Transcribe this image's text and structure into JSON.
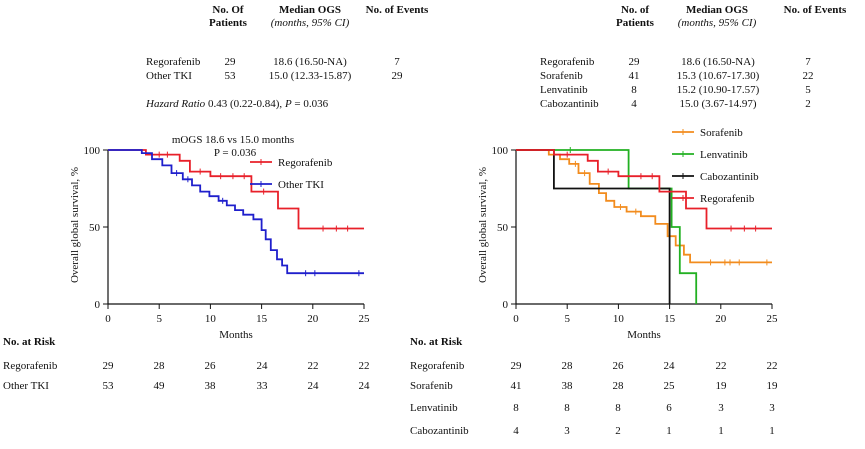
{
  "left_table": {
    "headers": {
      "patients_line1": "No. Of",
      "patients_line2": "Patients",
      "median": "Median OGS",
      "median_sub": "(months, 95% CI)",
      "events": "No. of Events"
    },
    "rows": [
      {
        "name": "Regorafenib",
        "n": "29",
        "median": "18.6 (16.50-NA)",
        "events": "7"
      },
      {
        "name": "Other TKI",
        "n": "53",
        "median": "15.0 (12.33-15.87)",
        "events": "29"
      }
    ],
    "hazard_label": "Hazard Ratio",
    "hazard_value": "0.43 (0.22-0.84),",
    "p_label": "P",
    "p_value": "= 0.036"
  },
  "right_table": {
    "headers": {
      "patients_line1": "No. of",
      "patients_line2": "Patients",
      "median": "Median OGS",
      "median_sub": "(months, 95% CI)",
      "events": "No. of Events"
    },
    "rows": [
      {
        "name": "Regorafenib",
        "n": "29",
        "median": "18.6 (16.50-NA)",
        "events": "7"
      },
      {
        "name": "Sorafenib",
        "n": "41",
        "median": "15.3 (10.67-17.30)",
        "events": "22"
      },
      {
        "name": "Lenvatinib",
        "n": "8",
        "median": "15.2 (10.90-17.57)",
        "events": "5"
      },
      {
        "name": "Cabozantinib",
        "n": "4",
        "median": "15.0 (3.67-14.97)",
        "events": "2"
      }
    ]
  },
  "left_risk": {
    "title": "No. at Risk",
    "rows": [
      {
        "name": "Regorafenib",
        "values": [
          "29",
          "28",
          "26",
          "24",
          "22",
          "22"
        ]
      },
      {
        "name": "Other TKI",
        "values": [
          "53",
          "49",
          "38",
          "33",
          "24",
          "24"
        ]
      }
    ]
  },
  "right_risk": {
    "title": "No. at Risk",
    "rows": [
      {
        "name": "Regorafenib",
        "values": [
          "29",
          "28",
          "26",
          "24",
          "22",
          "22"
        ]
      },
      {
        "name": "Sorafenib",
        "values": [
          "41",
          "38",
          "28",
          "25",
          "19",
          "19"
        ]
      },
      {
        "name": "Lenvatinib",
        "values": [
          "8",
          "8",
          "8",
          "6",
          "3",
          "3"
        ]
      },
      {
        "name": "Cabozantinib",
        "values": [
          "4",
          "3",
          "2",
          "1",
          "1",
          "1"
        ]
      }
    ]
  },
  "chart_data": [
    {
      "type": "line",
      "title": "",
      "annotation_line1": "mOGS 18.6 vs 15.0 months",
      "annotation_line2": "P = 0.036",
      "xlabel": "Months",
      "ylabel": "Overall global survival, %",
      "xlim": [
        0,
        25
      ],
      "ylim": [
        0,
        100
      ],
      "xticks": [
        "0",
        "5",
        "10",
        "15",
        "20",
        "25"
      ],
      "yticks": [
        "0",
        "50",
        "100"
      ],
      "legend": "top-right",
      "series": [
        {
          "name": "Regorafenib",
          "color": "#e8202a",
          "steps": [
            [
              0,
              100
            ],
            [
              3.7,
              100
            ],
            [
              3.7,
              97
            ],
            [
              7,
              97
            ],
            [
              7,
              93
            ],
            [
              8,
              93
            ],
            [
              8,
              86
            ],
            [
              10,
              86
            ],
            [
              10,
              83
            ],
            [
              14,
              83
            ],
            [
              14,
              73
            ],
            [
              16.6,
              73
            ],
            [
              16.6,
              62
            ],
            [
              18.6,
              62
            ],
            [
              18.6,
              49
            ],
            [
              25,
              49
            ]
          ],
          "censors": [
            5,
            5.8,
            9,
            11,
            12.2,
            13.3,
            15.2,
            21,
            22.3,
            23.4
          ]
        },
        {
          "name": "Other TKI",
          "color": "#1f1fcc",
          "steps": [
            [
              0,
              100
            ],
            [
              3.3,
              100
            ],
            [
              3.3,
              98
            ],
            [
              4.3,
              98
            ],
            [
              4.3,
              94
            ],
            [
              5.3,
              94
            ],
            [
              5.3,
              90
            ],
            [
              6.2,
              90
            ],
            [
              6.2,
              85
            ],
            [
              7.3,
              85
            ],
            [
              7.3,
              81
            ],
            [
              8.2,
              81
            ],
            [
              8.2,
              77
            ],
            [
              9,
              77
            ],
            [
              9,
              73
            ],
            [
              9.9,
              73
            ],
            [
              9.9,
              70
            ],
            [
              10.8,
              70
            ],
            [
              10.8,
              67
            ],
            [
              11.6,
              67
            ],
            [
              11.6,
              64
            ],
            [
              12.4,
              64
            ],
            [
              12.4,
              61
            ],
            [
              13.2,
              61
            ],
            [
              13.2,
              58
            ],
            [
              14.2,
              58
            ],
            [
              14.2,
              55
            ],
            [
              15,
              55
            ],
            [
              15,
              48
            ],
            [
              15.4,
              48
            ],
            [
              15.4,
              42
            ],
            [
              15.9,
              42
            ],
            [
              15.9,
              35
            ],
            [
              16.5,
              35
            ],
            [
              16.5,
              29
            ],
            [
              17,
              29
            ],
            [
              17,
              25
            ],
            [
              17.5,
              25
            ],
            [
              17.5,
              20
            ],
            [
              25,
              20
            ]
          ],
          "censors": [
            6.7,
            7.8,
            11.2,
            19.3,
            20.2,
            24.5
          ]
        }
      ]
    },
    {
      "type": "line",
      "title": "",
      "xlabel": "Months",
      "ylabel": "Overall global survival, %",
      "xlim": [
        0,
        25
      ],
      "ylim": [
        0,
        100
      ],
      "xticks": [
        "0",
        "5",
        "10",
        "15",
        "20",
        "25"
      ],
      "yticks": [
        "0",
        "50",
        "100"
      ],
      "legend": "top-right",
      "series": [
        {
          "name": "Sorafenib",
          "color": "#f28c1e",
          "steps": [
            [
              0,
              100
            ],
            [
              3.2,
              100
            ],
            [
              3.2,
              97
            ],
            [
              4.3,
              97
            ],
            [
              4.3,
              94
            ],
            [
              5.2,
              94
            ],
            [
              5.2,
              91
            ],
            [
              6.1,
              91
            ],
            [
              6.1,
              85
            ],
            [
              7.2,
              85
            ],
            [
              7.2,
              78
            ],
            [
              8.1,
              78
            ],
            [
              8.1,
              72
            ],
            [
              8.8,
              72
            ],
            [
              8.8,
              67
            ],
            [
              9.6,
              67
            ],
            [
              9.6,
              63
            ],
            [
              10.8,
              63
            ],
            [
              10.8,
              60
            ],
            [
              12.2,
              60
            ],
            [
              12.2,
              57
            ],
            [
              13.6,
              57
            ],
            [
              13.6,
              52
            ],
            [
              14.8,
              52
            ],
            [
              14.8,
              44
            ],
            [
              15.6,
              44
            ],
            [
              15.6,
              38
            ],
            [
              16.4,
              38
            ],
            [
              16.4,
              32
            ],
            [
              17,
              32
            ],
            [
              17,
              27
            ],
            [
              25,
              27
            ]
          ],
          "censors": [
            5.8,
            6.7,
            10.2,
            11.7,
            19,
            20.4,
            20.9,
            21.8,
            24.5
          ]
        },
        {
          "name": "Lenvatinib",
          "color": "#22b022",
          "steps": [
            [
              0,
              100
            ],
            [
              11,
              100
            ],
            [
              11,
              75
            ],
            [
              15.2,
              75
            ],
            [
              15.2,
              50
            ],
            [
              16,
              50
            ],
            [
              16,
              20
            ],
            [
              17.6,
              20
            ],
            [
              17.6,
              0
            ]
          ],
          "censors": [
            5.3
          ]
        },
        {
          "name": "Cabozantinib",
          "color": "#111111",
          "steps": [
            [
              0,
              100
            ],
            [
              3.7,
              100
            ],
            [
              3.7,
              75
            ],
            [
              15,
              75
            ],
            [
              15,
              0
            ]
          ],
          "censors": []
        },
        {
          "name": "Regorafenib",
          "color": "#e8202a",
          "steps": [
            [
              0,
              100
            ],
            [
              3.7,
              100
            ],
            [
              3.7,
              97
            ],
            [
              7,
              97
            ],
            [
              7,
              93
            ],
            [
              8,
              93
            ],
            [
              8,
              86
            ],
            [
              10,
              86
            ],
            [
              10,
              83
            ],
            [
              14,
              83
            ],
            [
              14,
              73
            ],
            [
              16.6,
              73
            ],
            [
              16.6,
              62
            ],
            [
              18.6,
              62
            ],
            [
              18.6,
              49
            ],
            [
              25,
              49
            ]
          ],
          "censors": [
            5,
            9,
            12.2,
            13.3,
            21,
            22.3,
            23.4
          ]
        }
      ]
    }
  ]
}
